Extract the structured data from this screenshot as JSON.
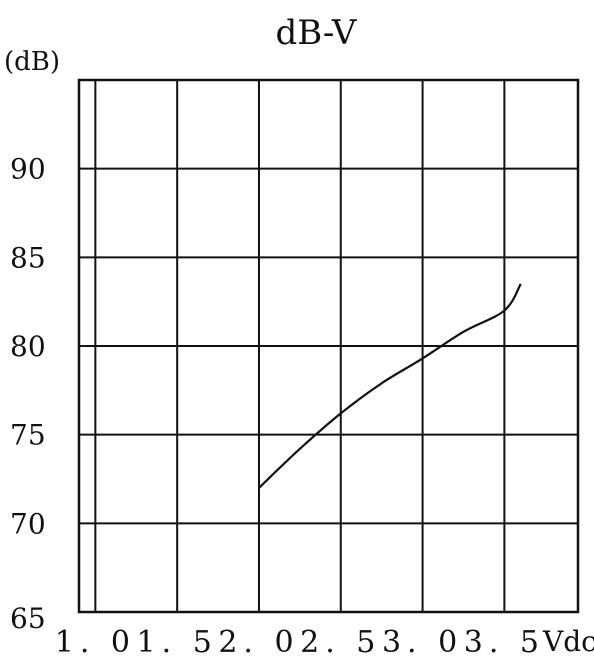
{
  "chart_data": {
    "type": "line",
    "title": "dB-V",
    "ylabel": "(dB)",
    "xlabel": "Vdc",
    "x_ticks": [
      "1. 0",
      "1. 5",
      "2. 0",
      "2. 5",
      "3. 0",
      "3. 5"
    ],
    "x_tick_values": [
      1.0,
      1.5,
      2.0,
      2.5,
      3.0,
      3.5
    ],
    "y_ticks": [
      "90",
      "85",
      "80",
      "75",
      "70",
      "65"
    ],
    "y_tick_values": [
      90,
      85,
      80,
      75,
      70,
      65
    ],
    "xlim": [
      0.9,
      3.95
    ],
    "ylim": [
      65,
      95
    ],
    "grid": true,
    "series": [
      {
        "x": [
          2.0,
          2.25,
          2.5,
          2.75,
          3.0,
          3.25,
          3.5,
          3.6
        ],
        "y": [
          72.0,
          74.2,
          76.2,
          77.9,
          79.3,
          80.8,
          82.0,
          83.5
        ]
      }
    ]
  }
}
